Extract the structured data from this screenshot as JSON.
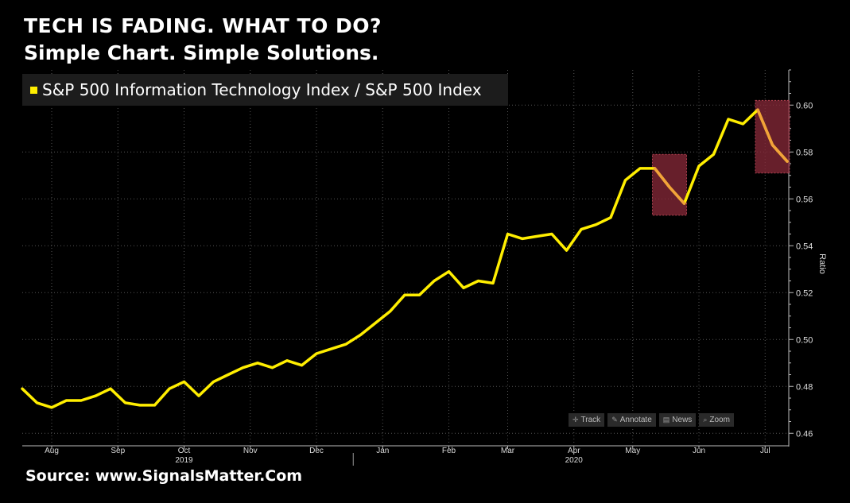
{
  "headline": {
    "line1": "TECH IS FADING. WHAT TO DO?",
    "line2": "Simple Chart. Simple Solutions."
  },
  "source": "Source: www.SignalsMatter.Com",
  "toolbar": [
    {
      "label": "Track",
      "icon": "crosshair-icon"
    },
    {
      "label": "Annotate",
      "icon": "pencil-icon"
    },
    {
      "label": "News",
      "icon": "news-icon"
    },
    {
      "label": "Zoom",
      "icon": "zoom-icon"
    }
  ],
  "colors": {
    "line": "#ffee00",
    "background": "#000000",
    "highlight_fill": "#8a2a3a",
    "highlight_line": "#f2a33a",
    "grid": "#555555"
  },
  "chart_data": {
    "type": "line",
    "legend": "S&P 500 Information Technology Index / S&P 500 Index",
    "ylabel": "Ratio",
    "ylim": [
      0.455,
      0.615
    ],
    "y_ticks": [
      "0.46",
      "0.48",
      "0.50",
      "0.52",
      "0.54",
      "0.56",
      "0.58",
      "0.60"
    ],
    "x_ticks": [
      {
        "label": "Aug",
        "index": 2
      },
      {
        "label": "Sep",
        "index": 6.5
      },
      {
        "label": "Oct",
        "index": 11
      },
      {
        "label": "Nov",
        "index": 15.5
      },
      {
        "label": "Dec",
        "index": 20
      },
      {
        "label": "Jan",
        "index": 24.5
      },
      {
        "label": "Feb",
        "index": 29
      },
      {
        "label": "Mar",
        "index": 33
      },
      {
        "label": "Apr",
        "index": 37.5
      },
      {
        "label": "May",
        "index": 41.5
      },
      {
        "label": "Jun",
        "index": 46
      },
      {
        "label": "Jul",
        "index": 50.5
      }
    ],
    "year_labels": [
      {
        "label": "2019",
        "index": 11
      },
      {
        "label": "2020",
        "index": 37.5
      }
    ],
    "year_divider_index": 22.5,
    "grid": true,
    "legend_position": "top-left",
    "series": [
      {
        "name": "S&P 500 Information Technology Index / S&P 500 Index",
        "values": [
          0.479,
          0.473,
          0.471,
          0.474,
          0.474,
          0.476,
          0.479,
          0.473,
          0.472,
          0.472,
          0.479,
          0.482,
          0.476,
          0.482,
          0.485,
          0.488,
          0.49,
          0.488,
          0.491,
          0.489,
          0.494,
          0.496,
          0.498,
          0.502,
          0.507,
          0.512,
          0.519,
          0.519,
          0.525,
          0.529,
          0.522,
          0.525,
          0.524,
          0.545,
          0.543,
          0.544,
          0.545,
          0.538,
          0.547,
          0.549,
          0.552,
          0.568,
          0.573,
          0.573,
          0.565,
          0.558,
          0.574,
          0.579,
          0.594,
          0.592,
          0.598,
          0.583,
          0.576
        ]
      }
    ],
    "highlight_ranges": [
      {
        "start_index": 43,
        "end_index": 45,
        "ymin": 0.553,
        "ymax": 0.579
      },
      {
        "start_index": 50,
        "end_index": 52,
        "ymin": 0.571,
        "ymax": 0.602
      }
    ]
  }
}
